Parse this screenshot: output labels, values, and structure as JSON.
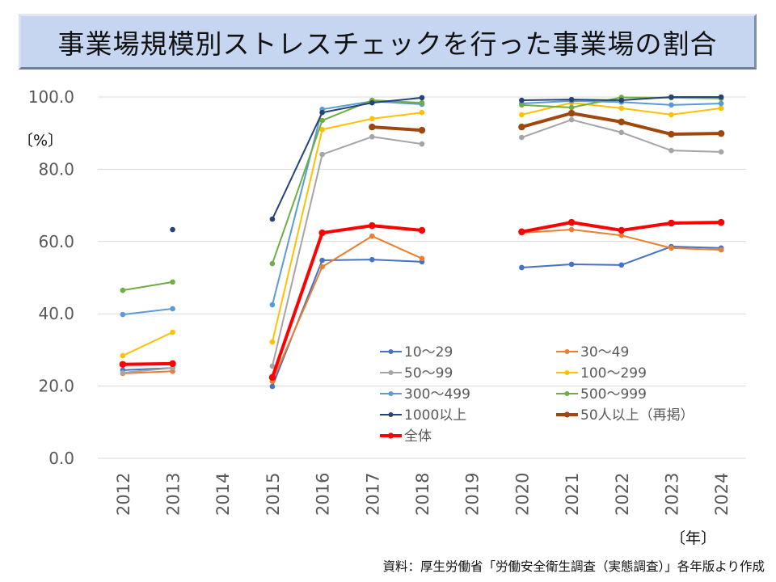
{
  "title": "事業場規模別ストレスチェックを行った事業場の割合",
  "source": "資料：厚生労働省「労働安全衛生調査（実態調査）」各年版より作成",
  "chart_data": {
    "type": "line",
    "title": "事業場規模別ストレスチェックを行った事業場の割合",
    "ylabel": "〔%〕",
    "xlabel": "〔年〕",
    "ylim": [
      0,
      100
    ],
    "yticks": [
      "0.0",
      "20.0",
      "40.0",
      "60.0",
      "80.0",
      "100.0"
    ],
    "ytick_values": [
      0,
      20,
      40,
      60,
      80,
      100
    ],
    "grid": true,
    "legend_position": "lower-right inside",
    "categories": [
      "2012",
      "2013",
      "2014",
      "2015",
      "2016",
      "2017",
      "2018",
      "2019",
      "2020",
      "2021",
      "2022",
      "2023",
      "2024"
    ],
    "series": [
      {
        "name": "10〜29",
        "color": "#4472c4",
        "thick": false,
        "values": [
          24.4,
          25.0,
          null,
          19.9,
          54.8,
          55.0,
          54.4,
          null,
          52.8,
          53.7,
          53.5,
          58.6,
          58.2
        ]
      },
      {
        "name": "30〜49",
        "color": "#ed7d31",
        "thick": false,
        "values": [
          23.5,
          24.1,
          null,
          21.3,
          53.0,
          61.5,
          55.3,
          null,
          62.4,
          63.3,
          61.7,
          58.2,
          57.7
        ]
      },
      {
        "name": "50〜99",
        "color": "#a5a5a5",
        "thick": false,
        "values": [
          23.7,
          25.0,
          null,
          25.5,
          84.1,
          89.0,
          87.0,
          null,
          88.8,
          93.7,
          90.2,
          85.2,
          84.8
        ]
      },
      {
        "name": "100〜299",
        "color": "#ffc000",
        "thick": false,
        "values": [
          28.4,
          34.9,
          null,
          32.2,
          91.0,
          94.0,
          95.7,
          null,
          95.1,
          98.4,
          96.9,
          95.1,
          96.9
        ]
      },
      {
        "name": "300〜499",
        "color": "#5b9bd5",
        "thick": false,
        "values": [
          39.8,
          41.4,
          null,
          42.5,
          96.6,
          98.8,
          98.0,
          null,
          98.2,
          98.9,
          98.6,
          97.8,
          98.2
        ]
      },
      {
        "name": "500〜999",
        "color": "#70ad47",
        "thick": false,
        "values": [
          46.5,
          48.8,
          null,
          53.9,
          93.5,
          99.1,
          98.4,
          null,
          97.8,
          97.1,
          99.9,
          99.8,
          99.6
        ]
      },
      {
        "name": "1000以上",
        "color": "#264478",
        "thick": false,
        "values": [
          null,
          63.3,
          null,
          66.2,
          95.7,
          98.4,
          99.8,
          null,
          99.1,
          99.3,
          99.1,
          100.0,
          100.0
        ]
      },
      {
        "name": "50人以上（再掲）",
        "color": "#9e480e",
        "thick": true,
        "values": [
          null,
          null,
          null,
          null,
          null,
          91.7,
          90.8,
          null,
          91.7,
          95.5,
          93.1,
          89.7,
          89.9
        ]
      },
      {
        "name": "全体",
        "color": "#ff0000",
        "thick": true,
        "values": [
          26.0,
          26.2,
          null,
          22.4,
          62.4,
          64.4,
          63.1,
          null,
          62.7,
          65.3,
          63.1,
          65.1,
          65.3
        ]
      }
    ]
  }
}
